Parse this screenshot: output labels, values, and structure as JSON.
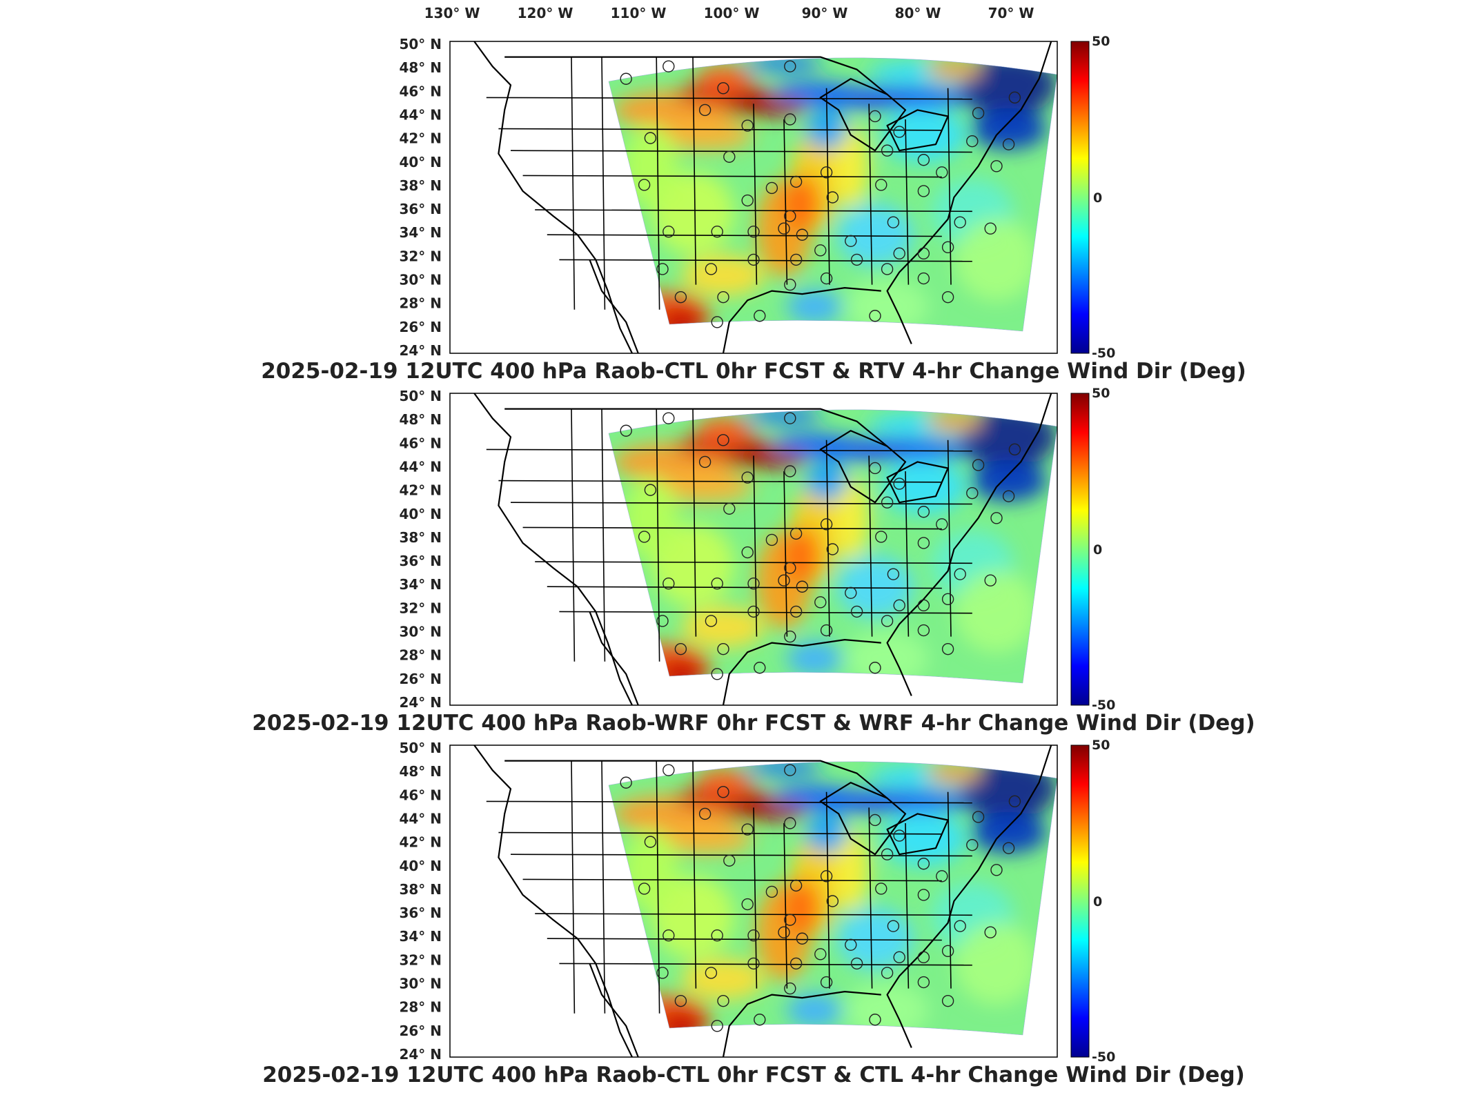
{
  "lon_labels": [
    "130° W",
    "120° W",
    "110° W",
    "100° W",
    "90° W",
    "80° W",
    "70° W"
  ],
  "lat_labels": [
    "50° N",
    "48° N",
    "46° N",
    "44° N",
    "42° N",
    "40° N",
    "38° N",
    "36° N",
    "34° N",
    "32° N",
    "30° N",
    "28° N",
    "26° N",
    "24° N"
  ],
  "colorbar": {
    "max": "50",
    "mid": "0",
    "min": "-50",
    "colormap": "jet"
  },
  "panels": [
    {
      "title": "2025-02-19 12UTC 400 hPa Raob-CTL 0hr FCST & RTV 4-hr Change Wind Dir (Deg)"
    },
    {
      "title": "2025-02-19 12UTC 400 hPa Raob-WRF 0hr FCST & WRF 4-hr Change Wind Dir (Deg)"
    },
    {
      "title": "2025-02-19 12UTC 400 hPa Raob-CTL 0hr FCST & CTL 4-hr Change Wind Dir (Deg)"
    }
  ]
}
